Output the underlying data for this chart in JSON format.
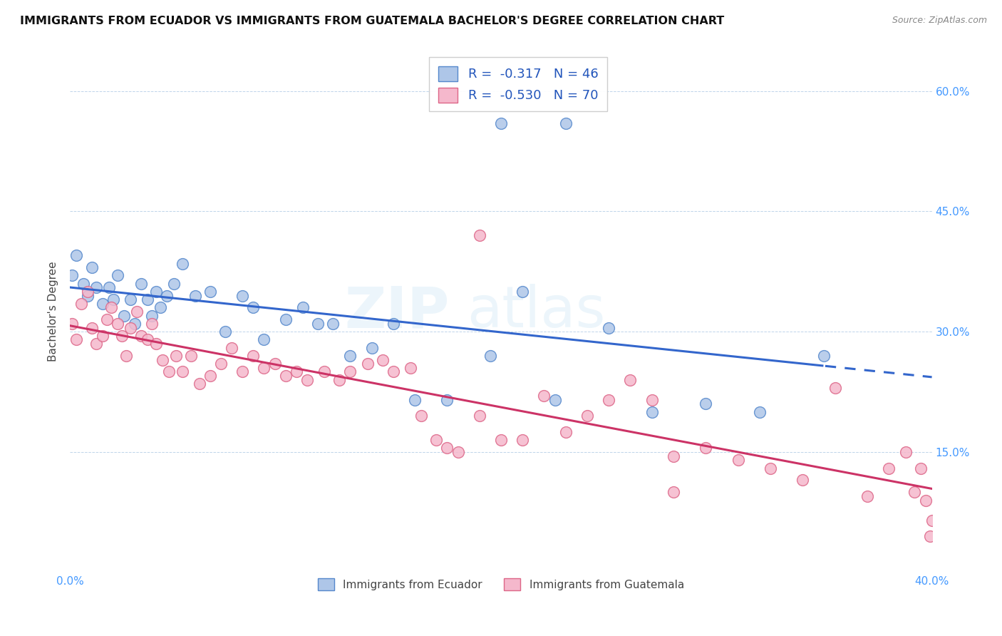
{
  "title": "IMMIGRANTS FROM ECUADOR VS IMMIGRANTS FROM GUATEMALA BACHELOR'S DEGREE CORRELATION CHART",
  "source": "Source: ZipAtlas.com",
  "ylabel": "Bachelor's Degree",
  "watermark": "ZIPatlas",
  "xlim": [
    0.0,
    0.4
  ],
  "ylim": [
    0.0,
    0.65
  ],
  "ecuador_color": "#aec6e8",
  "ecuador_edge": "#5588cc",
  "guatemala_color": "#f5b8cc",
  "guatemala_edge": "#dd6688",
  "ecuador_R": -0.317,
  "ecuador_N": 46,
  "guatemala_R": -0.53,
  "guatemala_N": 70,
  "ecuador_line_color": "#3366cc",
  "guatemala_line_color": "#cc3366",
  "tick_color": "#4499ff",
  "legend_color": "#2255bb",
  "ecuador_x": [
    0.001,
    0.003,
    0.006,
    0.008,
    0.01,
    0.012,
    0.015,
    0.018,
    0.02,
    0.022,
    0.025,
    0.028,
    0.03,
    0.033,
    0.036,
    0.038,
    0.04,
    0.042,
    0.045,
    0.048,
    0.052,
    0.058,
    0.065,
    0.072,
    0.08,
    0.085,
    0.09,
    0.1,
    0.108,
    0.115,
    0.122,
    0.13,
    0.14,
    0.15,
    0.16,
    0.175,
    0.195,
    0.21,
    0.225,
    0.25,
    0.27,
    0.295,
    0.32,
    0.35,
    0.2,
    0.23
  ],
  "ecuador_y": [
    0.37,
    0.395,
    0.36,
    0.345,
    0.38,
    0.355,
    0.335,
    0.355,
    0.34,
    0.37,
    0.32,
    0.34,
    0.31,
    0.36,
    0.34,
    0.32,
    0.35,
    0.33,
    0.345,
    0.36,
    0.385,
    0.345,
    0.35,
    0.3,
    0.345,
    0.33,
    0.29,
    0.315,
    0.33,
    0.31,
    0.31,
    0.27,
    0.28,
    0.31,
    0.215,
    0.215,
    0.27,
    0.35,
    0.215,
    0.305,
    0.2,
    0.21,
    0.2,
    0.27,
    0.56,
    0.56
  ],
  "guatemala_x": [
    0.001,
    0.003,
    0.005,
    0.008,
    0.01,
    0.012,
    0.015,
    0.017,
    0.019,
    0.022,
    0.024,
    0.026,
    0.028,
    0.031,
    0.033,
    0.036,
    0.038,
    0.04,
    0.043,
    0.046,
    0.049,
    0.052,
    0.056,
    0.06,
    0.065,
    0.07,
    0.075,
    0.08,
    0.085,
    0.09,
    0.095,
    0.1,
    0.105,
    0.11,
    0.118,
    0.125,
    0.13,
    0.138,
    0.145,
    0.15,
    0.158,
    0.163,
    0.17,
    0.175,
    0.18,
    0.19,
    0.2,
    0.21,
    0.22,
    0.23,
    0.24,
    0.25,
    0.26,
    0.27,
    0.28,
    0.295,
    0.31,
    0.325,
    0.34,
    0.355,
    0.37,
    0.38,
    0.388,
    0.392,
    0.395,
    0.397,
    0.399,
    0.4,
    0.28,
    0.19
  ],
  "guatemala_y": [
    0.31,
    0.29,
    0.335,
    0.35,
    0.305,
    0.285,
    0.295,
    0.315,
    0.33,
    0.31,
    0.295,
    0.27,
    0.305,
    0.325,
    0.295,
    0.29,
    0.31,
    0.285,
    0.265,
    0.25,
    0.27,
    0.25,
    0.27,
    0.235,
    0.245,
    0.26,
    0.28,
    0.25,
    0.27,
    0.255,
    0.26,
    0.245,
    0.25,
    0.24,
    0.25,
    0.24,
    0.25,
    0.26,
    0.265,
    0.25,
    0.255,
    0.195,
    0.165,
    0.155,
    0.15,
    0.195,
    0.165,
    0.165,
    0.22,
    0.175,
    0.195,
    0.215,
    0.24,
    0.215,
    0.145,
    0.155,
    0.14,
    0.13,
    0.115,
    0.23,
    0.095,
    0.13,
    0.15,
    0.1,
    0.13,
    0.09,
    0.045,
    0.065,
    0.1,
    0.42
  ]
}
